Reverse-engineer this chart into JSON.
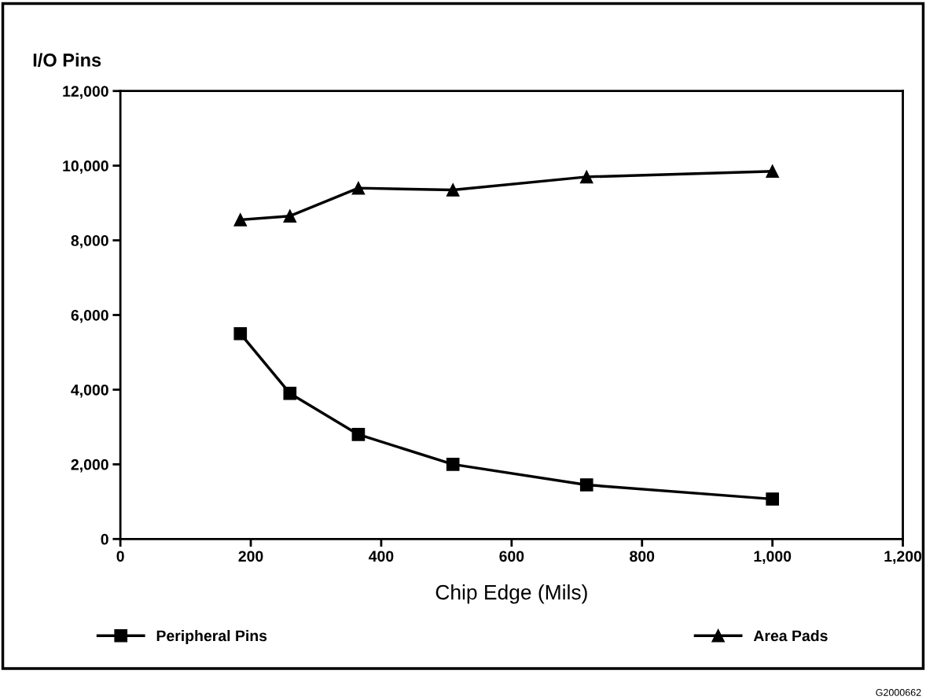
{
  "chart_data": {
    "type": "line",
    "ylabel": "I/O Pins",
    "xlabel": "Chip Edge (Mils)",
    "x": [
      184,
      260,
      365,
      510,
      715,
      1000
    ],
    "series": [
      {
        "name": "Peripheral Pins",
        "color": "#000000",
        "marker": "square",
        "values": [
          5500,
          3900,
          2800,
          2000,
          1450,
          1070
        ]
      },
      {
        "name": "Area Pads",
        "color": "#000000",
        "marker": "triangle",
        "values": [
          8550,
          8650,
          9400,
          9350,
          9700,
          9850
        ]
      }
    ],
    "xlim": [
      0,
      1200
    ],
    "xticks": [
      0,
      200,
      400,
      600,
      800,
      {
        "value": 1000,
        "label": "1,000"
      },
      {
        "value": 1200,
        "label": "1,200"
      }
    ],
    "ylim": [
      0,
      12000
    ],
    "yticks": [
      0,
      {
        "value": 2000,
        "label": "2,000"
      },
      {
        "value": 4000,
        "label": "4,000"
      },
      {
        "value": 6000,
        "label": "6,000"
      },
      {
        "value": 8000,
        "label": "8,000"
      },
      {
        "value": 10000,
        "label": "10,000"
      },
      {
        "value": 12000,
        "label": "12,000"
      }
    ],
    "grid": false,
    "legend": "bottom",
    "line_style": "solid",
    "annotations": [
      "G2000662"
    ]
  }
}
